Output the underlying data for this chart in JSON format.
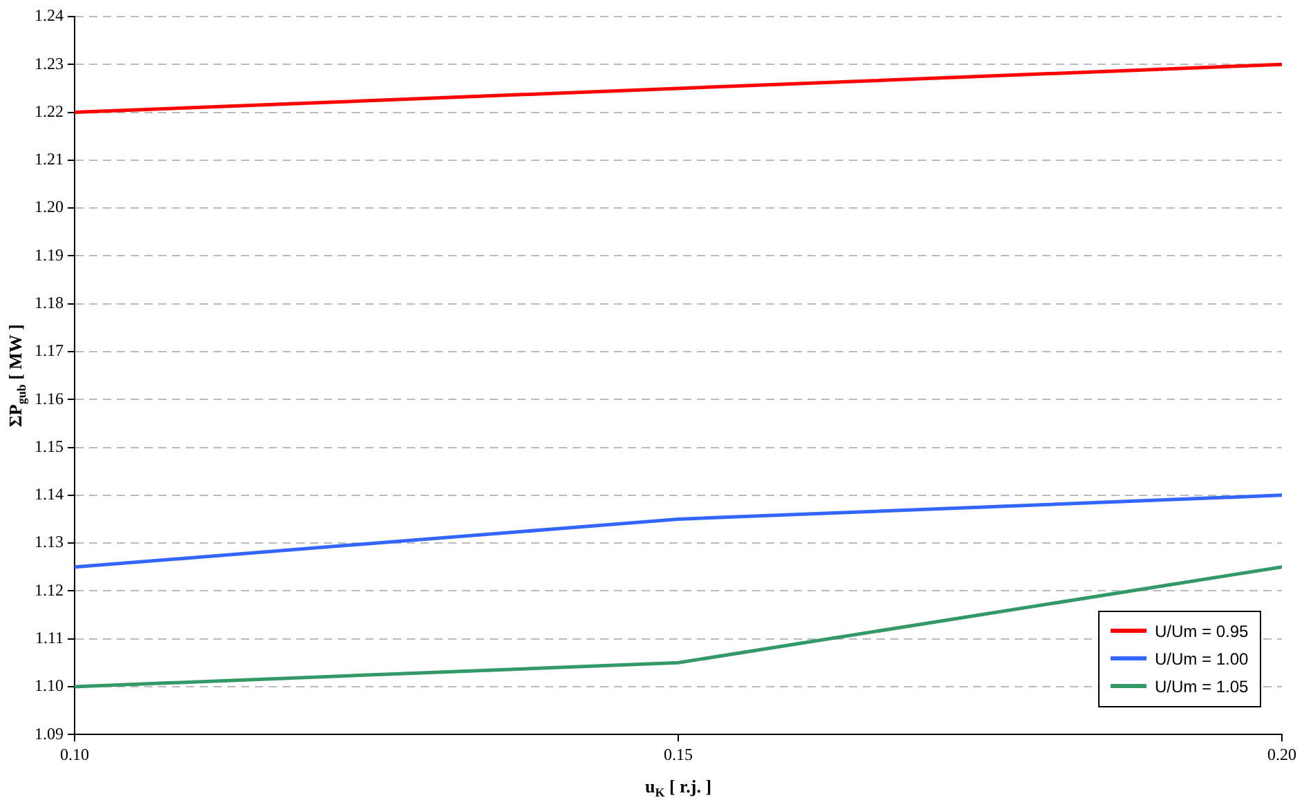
{
  "chart_data": {
    "type": "line",
    "xlabel": "u$_{K}$ [ r.j. ]",
    "ylabel": "ΣP$_{gub}$ [ MW ]",
    "x": [
      0.1,
      0.15,
      0.2
    ],
    "series": [
      {
        "name": "U/Um = 0.95",
        "color": "#ff0000",
        "values": [
          1.22,
          1.225,
          1.23
        ]
      },
      {
        "name": "U/Um = 1.00",
        "color": "#3366ff",
        "values": [
          1.125,
          1.135,
          1.14
        ]
      },
      {
        "name": "U/Um = 1.05",
        "color": "#339966",
        "values": [
          1.1,
          1.105,
          1.125
        ]
      }
    ],
    "xlim": [
      0.1,
      0.2
    ],
    "xticks": [
      {
        "value": 0.1,
        "label": "0.10"
      },
      {
        "value": 0.15,
        "label": "0.15"
      },
      {
        "value": 0.2,
        "label": "0.20"
      }
    ],
    "ylim": [
      1.09,
      1.24
    ],
    "yticks": [
      {
        "value": 1.09,
        "label": "1.09"
      },
      {
        "value": 1.1,
        "label": "1.10"
      },
      {
        "value": 1.11,
        "label": "1.11"
      },
      {
        "value": 1.12,
        "label": "1.12"
      },
      {
        "value": 1.13,
        "label": "1.13"
      },
      {
        "value": 1.14,
        "label": "1.14"
      },
      {
        "value": 1.15,
        "label": "1.15"
      },
      {
        "value": 1.16,
        "label": "1.16"
      },
      {
        "value": 1.17,
        "label": "1.17"
      },
      {
        "value": 1.18,
        "label": "1.18"
      },
      {
        "value": 1.19,
        "label": "1.19"
      },
      {
        "value": 1.2,
        "label": "1.20"
      },
      {
        "value": 1.21,
        "label": "1.21"
      },
      {
        "value": 1.22,
        "label": "1.22"
      },
      {
        "value": 1.23,
        "label": "1.23"
      },
      {
        "value": 1.24,
        "label": "1.24"
      }
    ],
    "grid": "y",
    "legend": "bottom right",
    "marker": "none",
    "line_style": "solid"
  }
}
